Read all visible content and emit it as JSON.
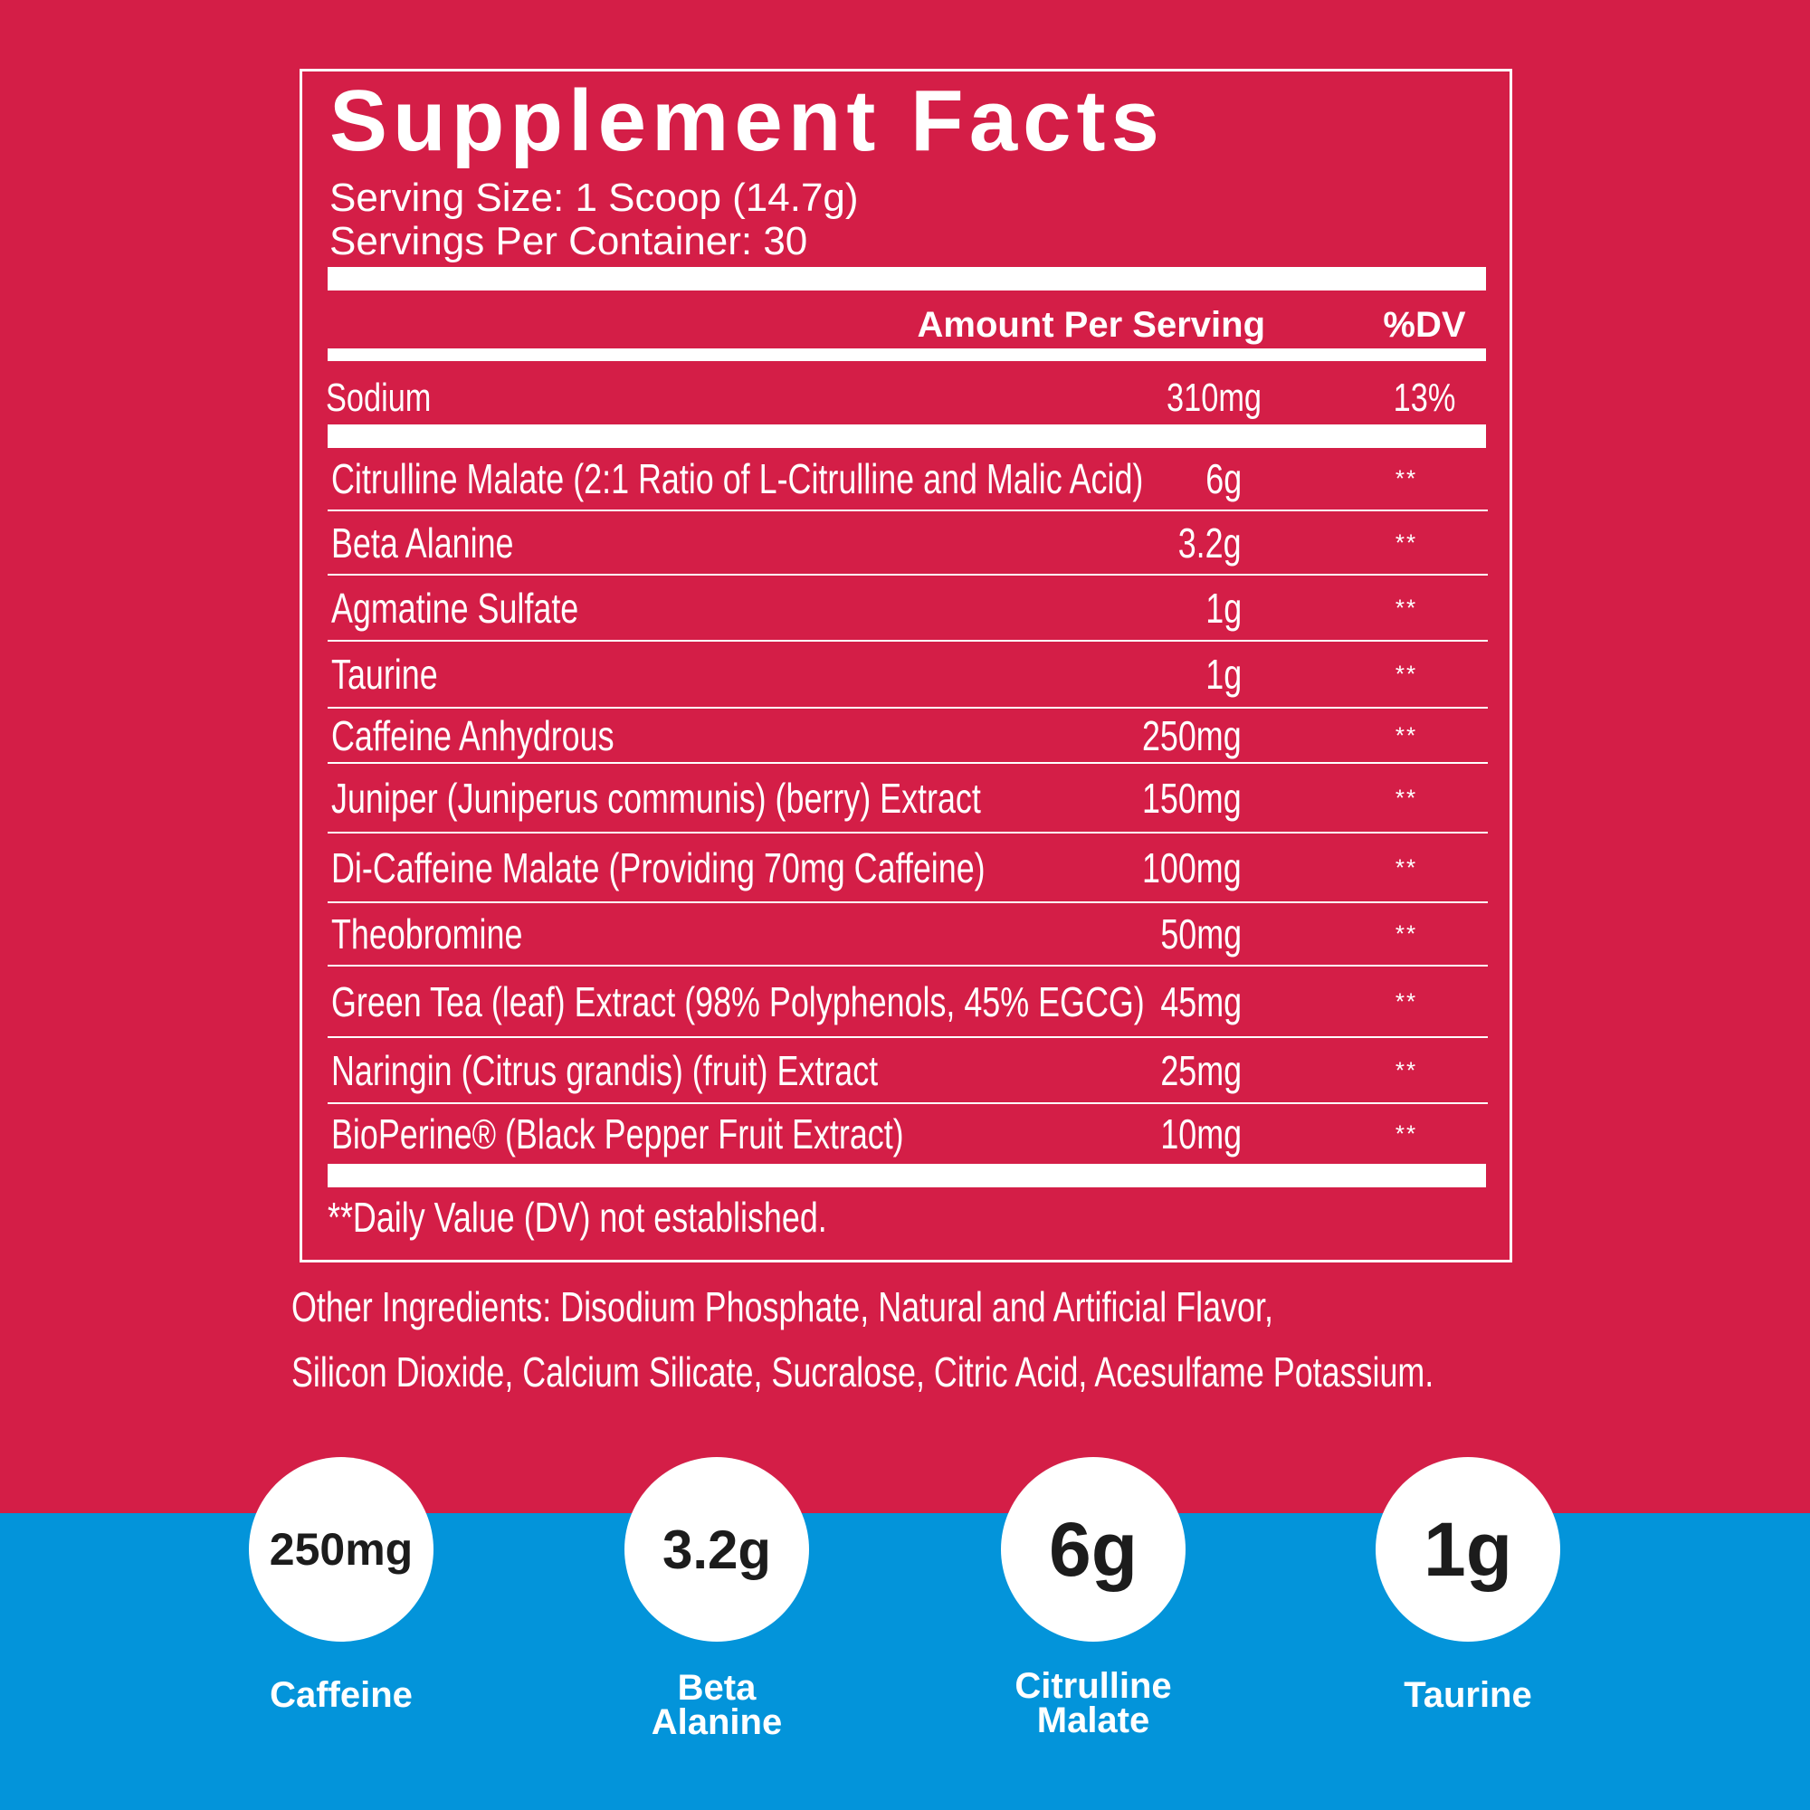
{
  "colors": {
    "top_background": "#d41e47",
    "bottom_background": "#0394da",
    "text": "#ffffff",
    "badge_text": "#1c1c1c"
  },
  "facts": {
    "title": "Supplement Facts",
    "serving_size": "Serving Size: 1 Scoop (14.7g)",
    "servings_per_container": "Servings Per Container: 30",
    "header_amount": "Amount Per Serving",
    "header_dv": "%DV",
    "sodium": {
      "name": "Sodium",
      "amount": "310mg",
      "dv": "13%"
    },
    "ingredients": [
      {
        "name": "Citrulline Malate (2:1 Ratio of L-Citrulline and Malic Acid)",
        "amount": "6g",
        "dv": "**"
      },
      {
        "name": "Beta Alanine",
        "amount": "3.2g",
        "dv": "**"
      },
      {
        "name": "Agmatine Sulfate",
        "amount": "1g",
        "dv": "**"
      },
      {
        "name": "Taurine",
        "amount": "1g",
        "dv": "**"
      },
      {
        "name": "Caffeine Anhydrous",
        "amount": "250mg",
        "dv": "**"
      },
      {
        "name": "Juniper (Juniperus communis) (berry) Extract",
        "amount": "150mg",
        "dv": "**"
      },
      {
        "name": "Di-Caffeine Malate (Providing 70mg Caffeine)",
        "amount": "100mg",
        "dv": "**"
      },
      {
        "name": "Theobromine",
        "amount": "50mg",
        "dv": "**"
      },
      {
        "name": "Green Tea (leaf) Extract (98% Polyphenols, 45% EGCG)",
        "amount": "45mg",
        "dv": "**"
      },
      {
        "name": "Naringin (Citrus grandis) (fruit) Extract",
        "amount": "25mg",
        "dv": "**"
      },
      {
        "name": "BioPerine® (Black Pepper Fruit Extract)",
        "amount": "10mg",
        "dv": "**"
      }
    ],
    "footnote": "**Daily Value (DV) not established."
  },
  "other_ingredients": {
    "line1": "Other Ingredients: Disodium Phosphate, Natural and Artificial Flavor,",
    "line2": "Silicon Dioxide, Calcium Silicate, Sucralose, Citric Acid, Acesulfame Potassium."
  },
  "badges": [
    {
      "value": "250mg",
      "label": "Caffeine"
    },
    {
      "value": "3.2g",
      "label": "Beta Alanine"
    },
    {
      "value": "6g",
      "label": "Citrulline Malate"
    },
    {
      "value": "1g",
      "label": "Taurine"
    }
  ]
}
